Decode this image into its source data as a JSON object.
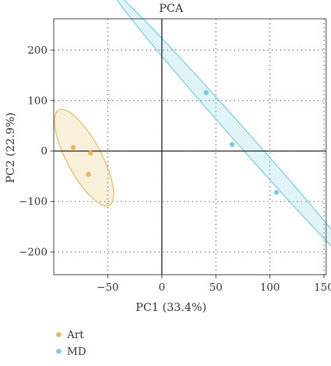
{
  "chart_data": {
    "type": "scatter",
    "title": "PCA",
    "xlabel": "PC1 (33.4%)",
    "ylabel": "PC2 (22.9%)",
    "xlim": [
      -100,
      152
    ],
    "ylim": [
      -245,
      262
    ],
    "xticks": [
      -50,
      0,
      50,
      100,
      150
    ],
    "yticks": [
      -200,
      -100,
      0,
      100,
      200
    ],
    "xtick_labels": [
      "−50",
      "0",
      "50",
      "100",
      "150"
    ],
    "ytick_labels": [
      "−200",
      "−100",
      "0",
      "100",
      "200"
    ],
    "grid": "dotted",
    "reference_lines": {
      "x": 0,
      "y": 0
    },
    "legend_position": "bottom-left",
    "series": [
      {
        "name": "Art",
        "color": "#e3bb5b",
        "points": [
          [
            -82,
            7
          ],
          [
            -66,
            -4
          ],
          [
            -68,
            -46
          ]
        ],
        "ellipse": {
          "cx": -72,
          "cy": -13,
          "rx": 50,
          "ry": 16,
          "angle_deg": -62
        }
      },
      {
        "name": "MD",
        "color": "#74cbe8",
        "points": [
          [
            41,
            116
          ],
          [
            65,
            13
          ],
          [
            106,
            -82
          ]
        ],
        "ellipse": {
          "cx": 75,
          "cy": 25,
          "rx": 182,
          "ry": 7,
          "angle_deg": -48.5
        }
      }
    ]
  }
}
